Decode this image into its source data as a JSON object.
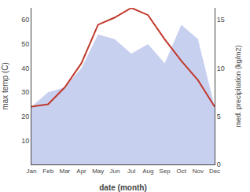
{
  "chart_data": {
    "type": "line",
    "categories": [
      "Jan",
      "Feb",
      "Mar",
      "Apr",
      "May",
      "Jun",
      "Jul",
      "Aug",
      "Sep",
      "Oct",
      "Nov",
      "Dec"
    ],
    "xlabel": "date (month)",
    "ylabel": "max temp (C)",
    "y2label": "med. precipitation (kg/m2)",
    "ylim": [
      0,
      65
    ],
    "yticks": [
      10,
      20,
      30,
      40,
      50,
      60
    ],
    "y2lim": [
      0,
      16.25
    ],
    "y2ticks": [
      0,
      5,
      10,
      15
    ],
    "grid": false,
    "series": [
      {
        "type": "area",
        "axis": "y2",
        "color": "#c8d0f0",
        "values": [
          6.0,
          7.5,
          8.0,
          10.0,
          13.5,
          13.0,
          11.5,
          12.5,
          10.5,
          14.5,
          13.0,
          6.0
        ]
      },
      {
        "type": "line",
        "color": "#c0392b",
        "values": [
          24,
          25,
          32,
          42,
          58,
          61,
          65,
          62,
          52,
          43,
          35,
          24
        ]
      }
    ]
  }
}
